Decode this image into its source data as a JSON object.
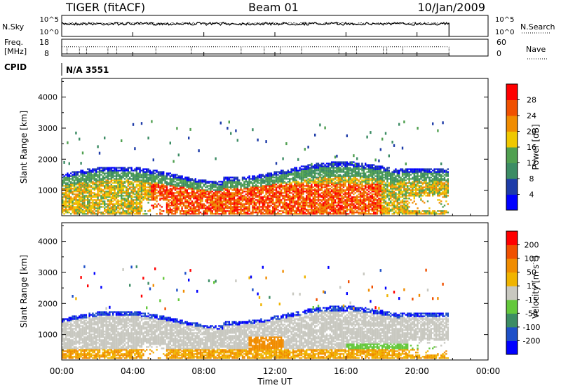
{
  "header": {
    "station": "TIGER (fitACF)",
    "beam": "Beam 01",
    "date": "10/Jan/2009"
  },
  "chart_data": [
    {
      "type": "line",
      "panel": "noise",
      "left_label": "N.Sky",
      "right_label": "N.Search",
      "left_ticks": [
        "10^5",
        "10^0"
      ],
      "right_ticks": [
        "10^5",
        "10^0"
      ],
      "x_range_hours": [
        0,
        24
      ],
      "data_end_hour": 21.8,
      "series": [
        {
          "name": "N.Sky",
          "level": 0.6
        },
        {
          "name": "N.Search",
          "level": 0.62
        }
      ]
    },
    {
      "type": "line",
      "panel": "frequency",
      "left_label_lines": [
        "Freq.",
        "[MHz]"
      ],
      "left_ticks": [
        18,
        8
      ],
      "right_label": "Nave",
      "right_ticks": [
        60,
        0
      ],
      "x_range_hours": [
        0,
        24
      ],
      "data_end_hour": 21.8,
      "freq_mhz": 11,
      "nave": 33
    },
    {
      "type": "text",
      "panel": "cpid",
      "label": "CPID",
      "value": "N/A 3551"
    },
    {
      "type": "heatmap",
      "panel": "power",
      "ylabel": "Slant Range [km]",
      "y_ticks": [
        1000,
        2000,
        3000,
        4000
      ],
      "ylim": [
        180,
        4600
      ],
      "x_range_hours": [
        0,
        24
      ],
      "data_end_hour": 21.8,
      "colorbar": {
        "label": "Power [dB]",
        "ticks": [
          28,
          24,
          20,
          16,
          12,
          8,
          4
        ],
        "range": [
          0,
          32
        ],
        "colors": [
          "#0000ff",
          "#1e3ca8",
          "#3c8c64",
          "#50a050",
          "#f0c800",
          "#f08c00",
          "#f05000",
          "#ff0000"
        ]
      }
    },
    {
      "type": "heatmap",
      "panel": "velocity",
      "ylabel": "Slant Range [km]",
      "y_ticks": [
        1000,
        2000,
        3000,
        4000
      ],
      "ylim": [
        180,
        4600
      ],
      "x_range_hours": [
        0,
        24
      ],
      "data_end_hour": 21.8,
      "xlabel": "Time UT",
      "x_ticks": [
        "00:00",
        "04:00",
        "08:00",
        "12:00",
        "16:00",
        "20:00",
        "00:00"
      ],
      "colorbar": {
        "label": "Velocity [m s",
        "label_superscript": "-1",
        "ticks": [
          200,
          100,
          50,
          15,
          -15,
          -50,
          -100,
          -200
        ],
        "colors": [
          "#0000ff",
          "#1e50c8",
          "#3c8c64",
          "#64c83c",
          "#c8c8c0",
          "#f0b400",
          "#f08c00",
          "#f05000",
          "#ff0000"
        ]
      }
    }
  ]
}
